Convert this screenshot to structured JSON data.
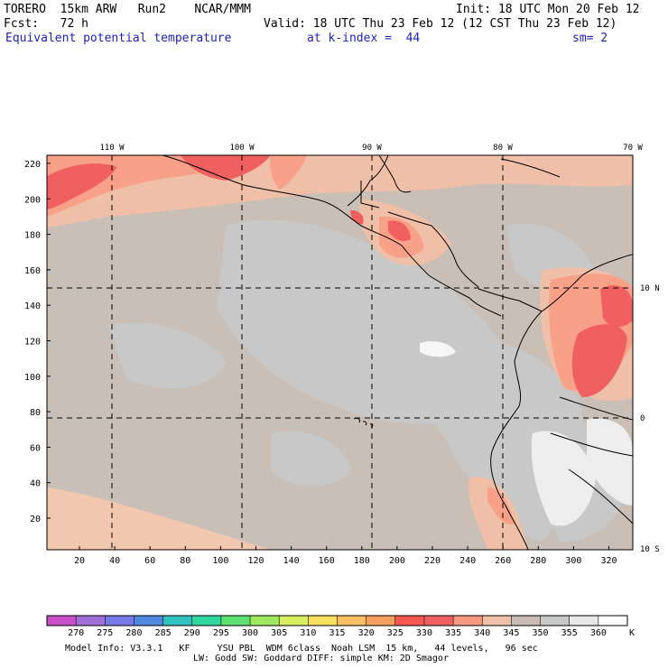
{
  "header": {
    "model": "TORERO  15km ARW   Run2    NCAR/MMM",
    "init": "Init: 18 UTC Mon 20 Feb 12",
    "fcst": "Fcst:   72 h",
    "valid": "Valid: 18 UTC Thu 23 Feb 12 (12 CST Thu 23 Feb 12)",
    "field": "Equivalent potential temperature",
    "level": "at k-index =  44",
    "smooth": "sm= 2"
  },
  "map": {
    "top_lon_labels": [
      "110 W",
      "100 W",
      "90 W",
      "80 W",
      "70 W"
    ],
    "right_lat_labels": [
      "10 N",
      "0",
      "10 S"
    ],
    "y_tick_labels": [
      "220",
      "200",
      "180",
      "160",
      "140",
      "120",
      "100",
      "80",
      "60",
      "40",
      "20"
    ],
    "x_tick_labels": [
      "20",
      "40",
      "60",
      "80",
      "100",
      "120",
      "140",
      "160",
      "180",
      "200",
      "220",
      "240",
      "260",
      "280",
      "300",
      "320"
    ],
    "background_color": "#c9bfb7",
    "grid_style": "dashed"
  },
  "colorbar": {
    "unit": "K",
    "labels": [
      "270",
      "275",
      "280",
      "285",
      "290",
      "295",
      "300",
      "305",
      "310",
      "315",
      "320",
      "325",
      "330",
      "335",
      "340",
      "345",
      "350",
      "355",
      "360"
    ],
    "colors": [
      "#c850c8",
      "#a070d8",
      "#7878e8",
      "#5088e0",
      "#30c0c0",
      "#30d8a0",
      "#60e070",
      "#a0e860",
      "#d8f060",
      "#f8e060",
      "#f8c060",
      "#f8a060",
      "#f85850",
      "#f06060",
      "#f89880",
      "#f0c0a8",
      "#c8bcb4",
      "#c8c8c8",
      "#e8e8e8",
      "#ffffff"
    ]
  },
  "footer": {
    "line1": "Model Info: V3.3.1   KF     YSU PBL  WDM 6class  Noah LSM  15 km,   44 levels,   96 sec",
    "line2": "LW: Godd SW: Goddard DIFF: simple KM: 2D Smagor"
  }
}
